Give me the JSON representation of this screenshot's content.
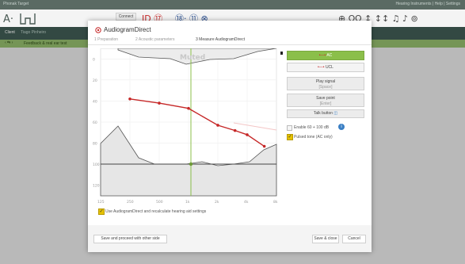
{
  "app": {
    "title": "Phonak Target",
    "top_right": "Hearing Instruments | Help | Settings"
  },
  "toolbar": {
    "connect_label": "Connect"
  },
  "client": {
    "label": "Client",
    "name": "Tiago Pinheiro"
  },
  "notice": {
    "text": "Feedback & real ear test"
  },
  "colors": {
    "accent": "#8bbf4a",
    "bone": "#c62828",
    "topbar": "#5a6a63"
  },
  "dialog": {
    "title": "AudiogramDirect",
    "steps": [
      "1 Preparation",
      "2 Acoustic parameters",
      "3 Measure AudiogramDirect"
    ],
    "buttons": {
      "ac": "AC",
      "uc": "UCL",
      "play_signal": "Play signal",
      "play_signal_sub": "[Space]",
      "save_point": "Save point",
      "save_point_sub": "[Enter]",
      "talk_button": "Talk button",
      "enable_label": "Enable 60 + 100 dB",
      "pulsed_label": "Pulsed tone (AC only)",
      "use_label": "Use AudiogramDirect and recalculate hearing aid settings",
      "save_other": "Save and proceed with other side",
      "save_close": "Save & close",
      "cancel": "Cancel"
    },
    "watermark": "Muted"
  },
  "chart_data": {
    "type": "line",
    "x": [
      250,
      500,
      1000,
      2000,
      3000,
      4000,
      6000
    ],
    "x_ticks": [
      "125",
      "250",
      "500",
      "1k",
      "2k",
      "4k",
      "8k"
    ],
    "y_ticks": [
      "0",
      "20",
      "40",
      "60",
      "80",
      "100",
      "120"
    ],
    "series": [
      {
        "name": "AC",
        "color": "#c62828",
        "values": [
          38,
          42,
          47,
          63,
          68,
          72,
          83
        ]
      }
    ],
    "ylim": [
      -10,
      130
    ]
  }
}
